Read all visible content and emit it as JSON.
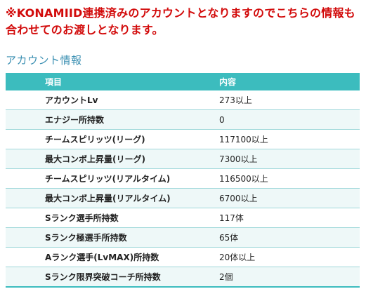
{
  "notice": {
    "line1": "※KONAMIID連携済みのアカウントとなりますのでこちらの情報も",
    "line2": "合わせてのお渡しとなります。"
  },
  "section": {
    "title": "アカウント情報"
  },
  "table": {
    "headers": [
      "項目",
      "内容"
    ],
    "rows": [
      {
        "item": "アカウントLv",
        "value": "273以上"
      },
      {
        "item": "エナジー所持数",
        "value": "0"
      },
      {
        "item": "チームスピリッツ(リーグ)",
        "value": "117100以上"
      },
      {
        "item": "最大コンボ上昇量(リーグ)",
        "value": "7300以上"
      },
      {
        "item": "チームスピリッツ(リアルタイム)",
        "value": "116500以上"
      },
      {
        "item": "最大コンボ上昇量(リアルタイム)",
        "value": "6700以上"
      },
      {
        "item": "Sランク選手所持数",
        "value": "117体"
      },
      {
        "item": "Sランク極選手所持数",
        "value": "65体"
      },
      {
        "item": "Aランク選手(LvMAX)所持数",
        "value": "20体以上"
      },
      {
        "item": "Sランク限界突破コーチ所持数",
        "value": "2個"
      }
    ]
  },
  "colors": {
    "notice_red": "#d20a0a",
    "title_blue": "#3a8fb2",
    "header_teal": "#3cbcbe",
    "row_alt": "#eef8f8"
  }
}
